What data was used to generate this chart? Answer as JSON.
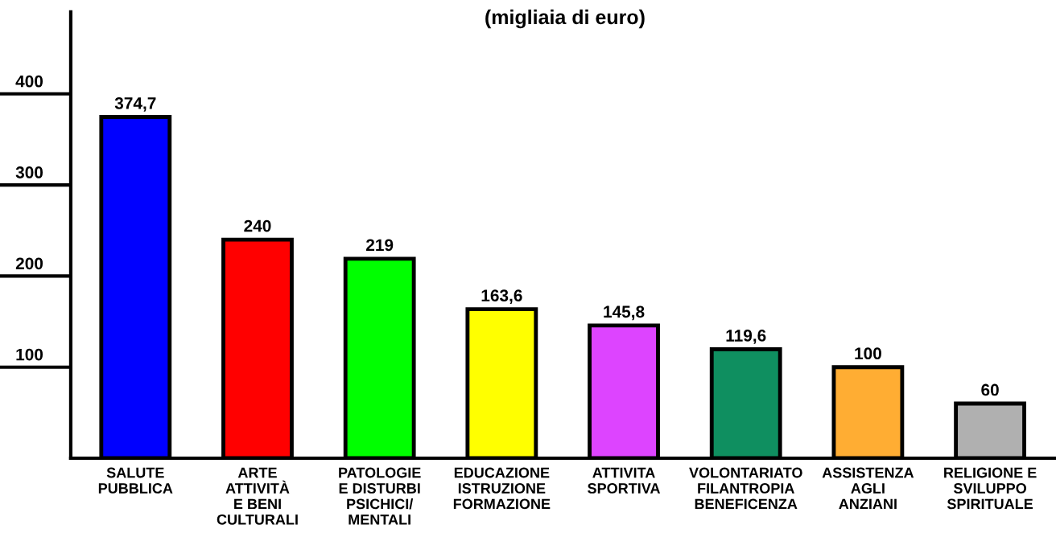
{
  "chart_data": {
    "type": "bar",
    "title": "(migliaia di euro)",
    "categories": [
      "SALUTE\nPUBBLICA",
      "ARTE\nATTIVITÀ\nE BENI\nCULTURALI",
      "PATOLOGIE\nE DISTURBI\nPSICHICI/\nMENTALI",
      "EDUCAZIONE\nISTRUZIONE\nFORMAZIONE",
      "ATTIVITA\nSPORTIVA",
      "VOLONTARIATO\nFILANTROPIA\nBENEFICENZA",
      "ASSISTENZA\nAGLI\nANZIANI",
      "RELIGIONE E\nSVILUPPO\nSPIRITUALE"
    ],
    "values": [
      374.7,
      240,
      219,
      163.6,
      145.8,
      119.6,
      100,
      60
    ],
    "value_labels": [
      "374,7",
      "240",
      "219",
      "163,6",
      "145,8",
      "119,6",
      "100",
      "60"
    ],
    "colors": [
      "#0000ff",
      "#ff0000",
      "#00ff00",
      "#ffff00",
      "#dd44ff",
      "#0f8f60",
      "#ffad33",
      "#b0b0b0"
    ],
    "ylim": [
      0,
      490
    ],
    "yticks": [
      100,
      200,
      300,
      400
    ],
    "grid": false
  }
}
